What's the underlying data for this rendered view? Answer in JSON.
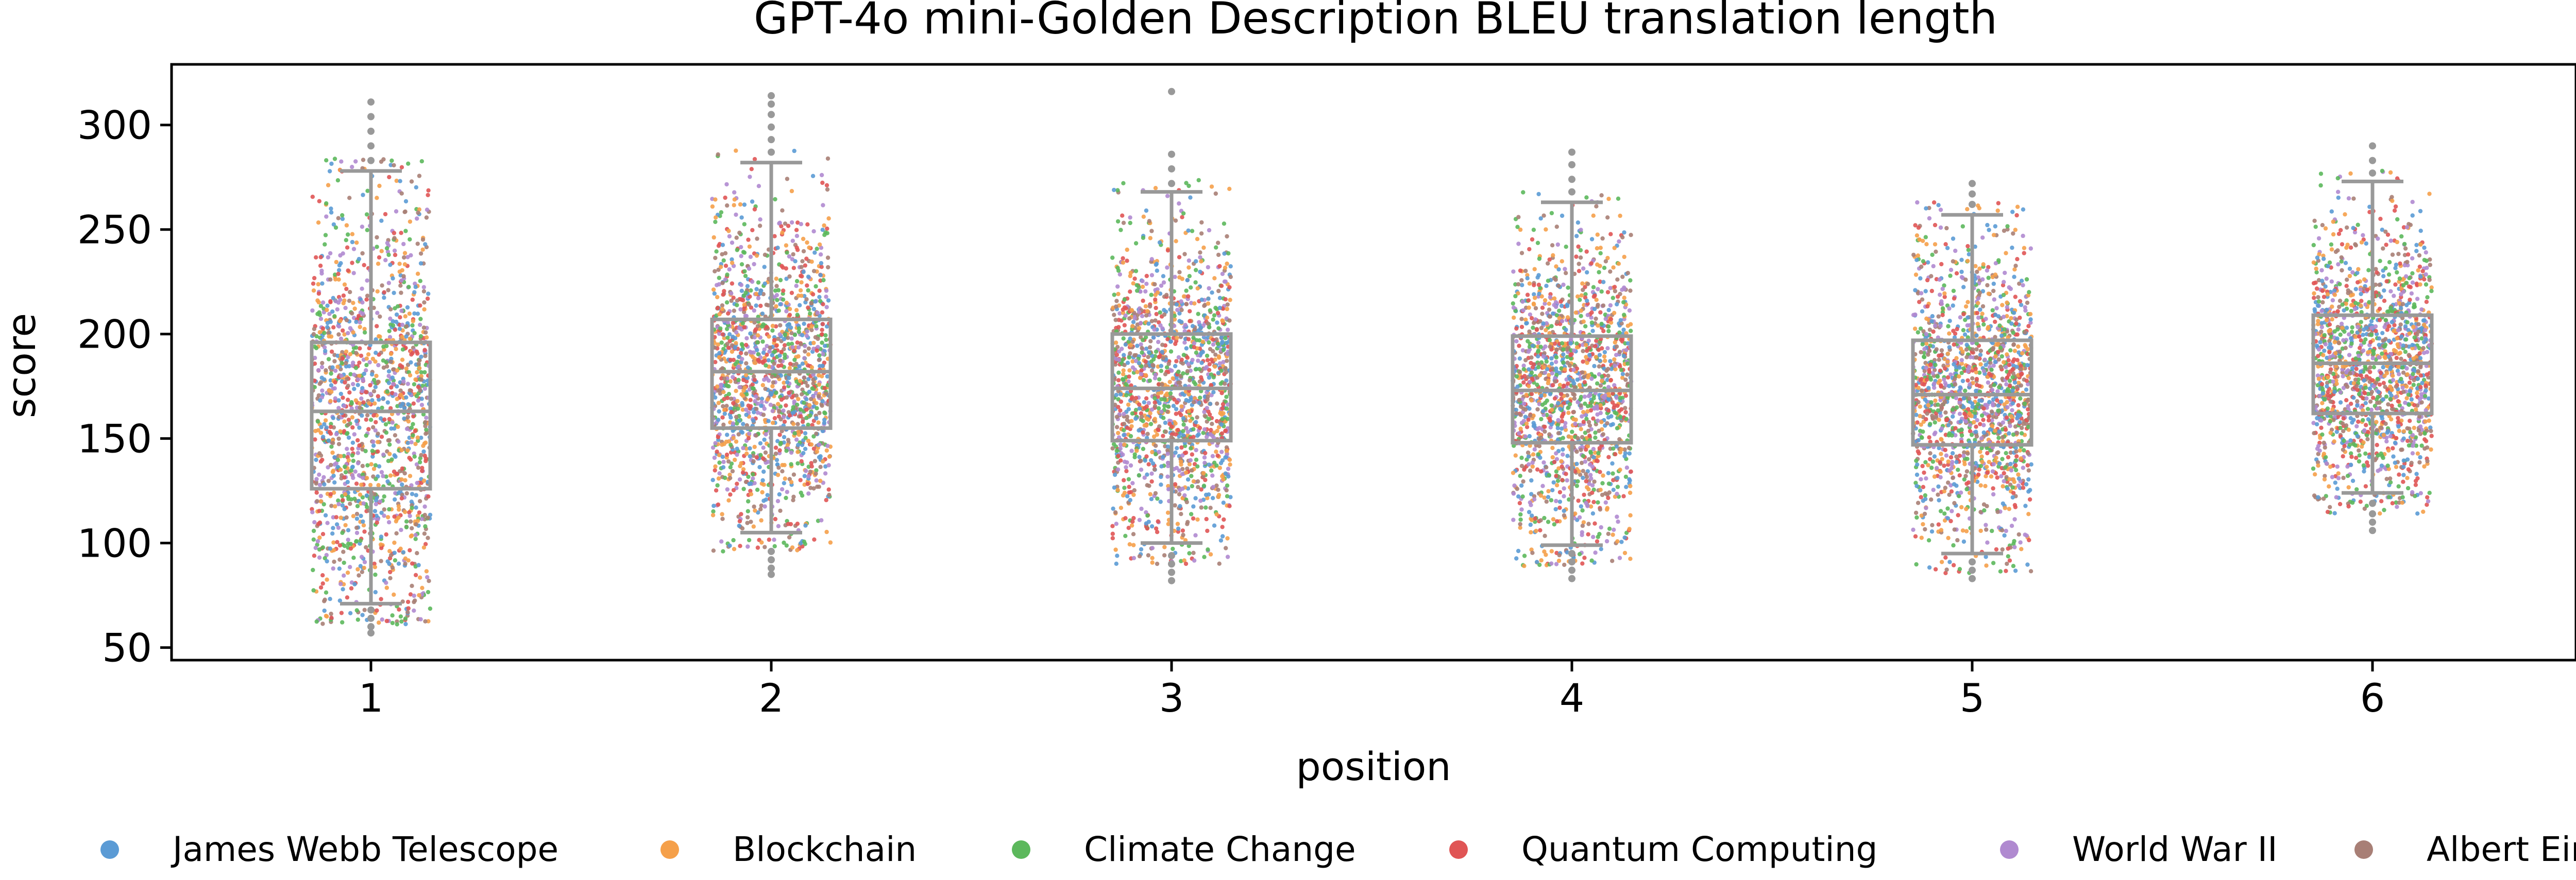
{
  "chart_data": {
    "type": "box-strip",
    "title": "GPT-4o mini-Golden Description BLEU translation length",
    "xlabel": "position",
    "ylabel": "score",
    "categories": [
      "1",
      "2",
      "3",
      "4",
      "5",
      "6"
    ],
    "ylim": [
      44,
      329
    ],
    "yticks": [
      50,
      100,
      150,
      200,
      250,
      300
    ],
    "grid": false,
    "legend_position": "bottom",
    "box_color": "#999999",
    "boxes": [
      {
        "category": "1",
        "whisker_low": 71,
        "q1": 126,
        "median": 163,
        "q3": 196,
        "whisker_high": 278,
        "outliers_low": [
          68,
          64,
          60,
          57
        ],
        "outliers_high": [
          283,
          290,
          297,
          304,
          311
        ]
      },
      {
        "category": "2",
        "whisker_low": 105,
        "q1": 155,
        "median": 182,
        "q3": 207,
        "whisker_high": 282,
        "outliers_low": [
          96,
          92,
          88,
          85
        ],
        "outliers_high": [
          287,
          293,
          299,
          305,
          310,
          314
        ]
      },
      {
        "category": "3",
        "whisker_low": 100,
        "q1": 149,
        "median": 174,
        "q3": 200,
        "whisker_high": 268,
        "outliers_low": [
          94,
          90,
          86,
          82
        ],
        "outliers_high": [
          272,
          279,
          286,
          316
        ]
      },
      {
        "category": "4",
        "whisker_low": 99,
        "q1": 148,
        "median": 173,
        "q3": 199,
        "whisker_high": 263,
        "outliers_low": [
          95,
          91,
          87,
          83
        ],
        "outliers_high": [
          268,
          274,
          281,
          287
        ]
      },
      {
        "category": "5",
        "whisker_low": 95,
        "q1": 147,
        "median": 171,
        "q3": 197,
        "whisker_high": 257,
        "outliers_low": [
          91,
          87,
          83
        ],
        "outliers_high": [
          262,
          267,
          272
        ]
      },
      {
        "category": "6",
        "whisker_low": 124,
        "q1": 162,
        "median": 186,
        "q3": 209,
        "whisker_high": 273,
        "outliers_low": [
          119,
          114,
          110,
          106
        ],
        "outliers_high": [
          277,
          283,
          290
        ]
      }
    ],
    "series": [
      {
        "name": "James Webb Telescope",
        "color": "#5b9bd5"
      },
      {
        "name": "Blockchain",
        "color": "#f5a04a"
      },
      {
        "name": "Climate Change",
        "color": "#5cb85c"
      },
      {
        "name": "Quantum Computing",
        "color": "#e05555"
      },
      {
        "name": "World War II",
        "color": "#b08ad0"
      },
      {
        "name": "Albert Einstein",
        "color": "#a87f76"
      }
    ]
  }
}
